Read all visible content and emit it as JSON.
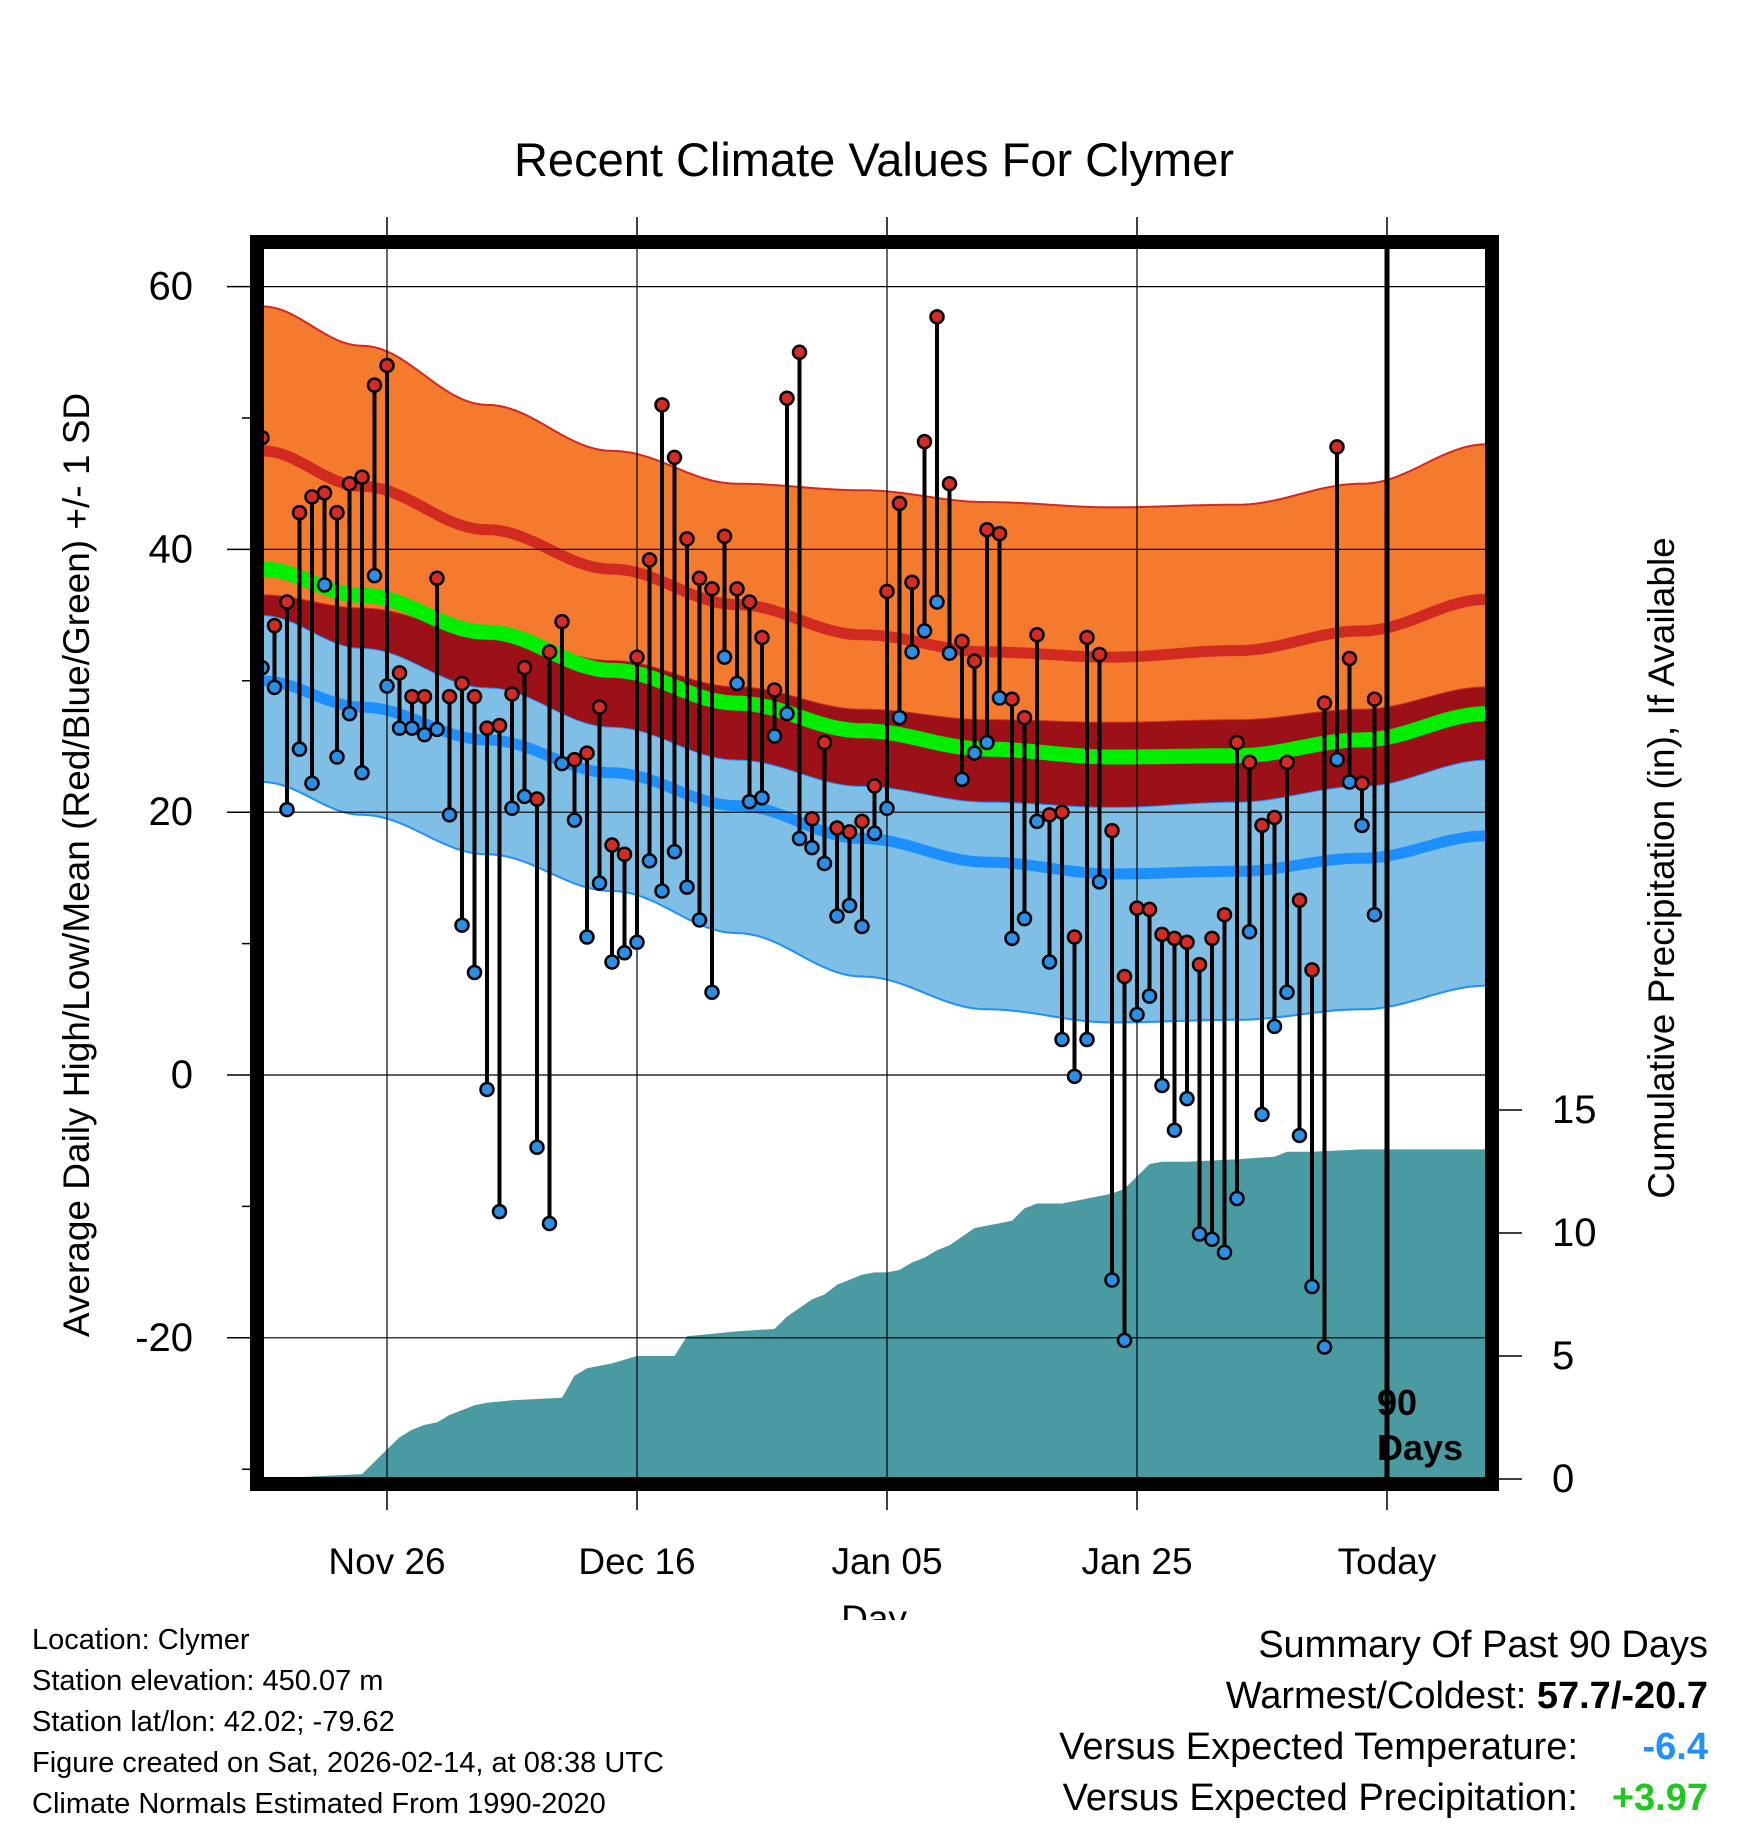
{
  "title": "Recent Climate Values For Clymer",
  "chart_data": {
    "type": "line",
    "title": "Recent Climate Values For Clymer",
    "xlabel": "Day",
    "ylabel_left": "Average Daily High/Low/Mean (Red/Blue/Green) +/- 1 SD",
    "ylabel_right": "Cumulative Precipitation (in), If Available",
    "x_range_days": [
      -88,
      10
    ],
    "x_ticks": [
      {
        "day": -78,
        "label": "Nov 26"
      },
      {
        "day": -58,
        "label": "Dec 16"
      },
      {
        "day": -38,
        "label": "Jan 05"
      },
      {
        "day": -18,
        "label": "Jan 25"
      },
      {
        "day": 2,
        "label": "Today"
      }
    ],
    "y_left_range": [
      -30,
      65
    ],
    "y_left_ticks": [
      -20,
      0,
      20,
      40,
      60
    ],
    "y_right_range": [
      0,
      30
    ],
    "y_right_ticks": [
      0,
      5,
      10,
      15
    ],
    "today_day": 2,
    "today_annotation": "90\nDays",
    "normals": {
      "days": [
        -88,
        -80,
        -70,
        -60,
        -50,
        -40,
        -30,
        -20,
        -10,
        0,
        10
      ],
      "high_mean": [
        47.5,
        44.8,
        41.5,
        38.5,
        35.8,
        33.5,
        32.2,
        31.8,
        32.3,
        33.8,
        36.2
      ],
      "high_upper": [
        58.5,
        55.5,
        51.0,
        47.5,
        45.0,
        44.5,
        43.6,
        43.2,
        43.4,
        45.0,
        48.0
      ],
      "high_lower": [
        36.5,
        35.5,
        33.5,
        31.5,
        29.5,
        27.8,
        27.0,
        26.8,
        27.0,
        27.8,
        29.5
      ],
      "mean": [
        38.5,
        36.5,
        33.7,
        30.8,
        28.3,
        26.2,
        24.8,
        24.2,
        24.3,
        25.5,
        27.5
      ],
      "low_mean": [
        30.0,
        28.0,
        25.5,
        23.0,
        20.5,
        18.0,
        16.2,
        15.3,
        15.5,
        16.5,
        18.2
      ],
      "low_upper": [
        35.0,
        32.5,
        29.5,
        26.5,
        24.0,
        22.0,
        20.8,
        20.4,
        20.8,
        22.0,
        24.0
      ],
      "low_lower": [
        22.3,
        19.8,
        16.8,
        14.0,
        10.8,
        7.5,
        5.0,
        4.0,
        4.2,
        5.0,
        6.8
      ]
    },
    "daily_obs": {
      "days": [
        -88,
        -87,
        -86,
        -85,
        -84,
        -83,
        -82,
        -81,
        -80,
        -79,
        -78,
        -77,
        -76,
        -75,
        -74,
        -73,
        -72,
        -71,
        -70,
        -69,
        -68,
        -67,
        -66,
        -65,
        -64,
        -63,
        -62,
        -61,
        -60,
        -59,
        -58,
        -57,
        -56,
        -55,
        -54,
        -53,
        -52,
        -51,
        -50,
        -49,
        -48,
        -47,
        -46,
        -45,
        -44,
        -43,
        -42,
        -41,
        -40,
        -39,
        -38,
        -37,
        -36,
        -35,
        -34,
        -33,
        -32,
        -31,
        -30,
        -29,
        -28,
        -27,
        -26,
        -25,
        -24,
        -23,
        -22,
        -21,
        -20,
        -19,
        -18,
        -17,
        -16,
        -15,
        -14,
        -13,
        -12,
        -11,
        -10,
        -9,
        -8,
        -7,
        -6,
        -5,
        -4,
        -3,
        -2,
        -1,
        0,
        1
      ],
      "high": [
        48.5,
        34.2,
        36.0,
        42.8,
        44.0,
        44.3,
        42.8,
        45.0,
        45.5,
        52.5,
        54.0,
        30.6,
        28.8,
        28.8,
        37.8,
        28.8,
        29.8,
        28.8,
        26.4,
        26.6,
        29.0,
        31.0,
        21.0,
        32.2,
        34.5,
        24.0,
        24.5,
        28.0,
        17.5,
        16.8,
        31.8,
        39.2,
        51.0,
        47.0,
        40.8,
        37.8,
        37.0,
        41.0,
        37.0,
        36.0,
        33.3,
        29.3,
        51.5,
        55.0,
        19.5,
        25.3,
        18.8,
        18.5,
        19.3,
        22.0,
        36.8,
        43.5,
        37.5,
        48.2,
        57.7,
        45.0,
        33.0,
        31.5,
        41.5,
        41.2,
        28.6,
        27.2,
        33.5,
        19.8,
        20.0,
        10.5,
        33.3,
        32.0,
        18.6,
        7.5,
        12.7,
        12.6,
        10.7,
        10.4,
        10.1,
        8.4,
        10.4,
        12.2,
        25.3,
        23.8,
        19.0,
        19.6,
        23.8,
        13.3,
        8.0,
        28.3,
        47.8,
        31.7,
        22.2,
        28.6
      ],
      "low": [
        31.0,
        29.5,
        20.2,
        24.8,
        22.2,
        37.3,
        24.2,
        27.5,
        23.0,
        38.0,
        29.6,
        26.4,
        26.4,
        25.9,
        26.3,
        19.8,
        11.4,
        7.8,
        -1.1,
        -10.4,
        20.3,
        21.2,
        -5.5,
        -11.3,
        23.7,
        19.4,
        10.5,
        14.6,
        8.6,
        9.3,
        10.1,
        16.3,
        14.0,
        17.0,
        14.3,
        11.8,
        6.3,
        31.8,
        29.8,
        20.8,
        21.1,
        25.8,
        27.5,
        18.0,
        17.3,
        16.1,
        12.1,
        12.9,
        11.3,
        18.4,
        20.3,
        27.2,
        32.2,
        33.8,
        36.0,
        32.1,
        22.5,
        24.5,
        25.3,
        28.7,
        10.4,
        11.9,
        19.3,
        8.6,
        2.7,
        -0.1,
        2.7,
        14.7,
        -15.6,
        -20.2,
        4.6,
        6.0,
        -0.8,
        -4.2,
        -1.8,
        -12.1,
        -12.5,
        -13.5,
        -9.4,
        10.9,
        -3.0,
        3.7,
        6.3,
        -4.6,
        -16.1,
        -20.7,
        24.0,
        22.3,
        19.0,
        12.2
      ]
    },
    "cumulative_precip": {
      "days": [
        -88,
        -84,
        -80,
        -79,
        -78,
        -77,
        -76,
        -75,
        -74,
        -73,
        -72,
        -71,
        -70,
        -68,
        -64,
        -63,
        -62,
        -60,
        -58,
        -55,
        -54,
        -50,
        -47,
        -46,
        -44,
        -43,
        -42,
        -41,
        -40,
        -39,
        -38,
        -37,
        -36,
        -35,
        -34,
        -33,
        -31,
        -30,
        -29,
        -28,
        -27,
        -26,
        -24,
        -21,
        -20,
        -19,
        -18,
        -17,
        -16,
        -14,
        -10,
        -7,
        -6,
        -4,
        0,
        10
      ],
      "values": [
        0.0,
        0.1,
        0.2,
        0.7,
        1.2,
        1.7,
        2.0,
        2.2,
        2.3,
        2.6,
        2.8,
        3.0,
        3.1,
        3.2,
        3.3,
        4.2,
        4.5,
        4.7,
        5.0,
        5.0,
        5.8,
        6.0,
        6.1,
        6.6,
        7.3,
        7.5,
        7.9,
        8.1,
        8.3,
        8.4,
        8.4,
        8.5,
        8.8,
        9.0,
        9.3,
        9.5,
        10.2,
        10.3,
        10.4,
        10.5,
        11.0,
        11.2,
        11.2,
        11.5,
        11.6,
        11.8,
        12.3,
        12.8,
        12.9,
        12.9,
        13.0,
        13.1,
        13.3,
        13.3,
        13.4,
        13.4
      ]
    }
  },
  "info": {
    "location": "Location: Clymer",
    "elevation": "Station elevation: 450.07 m",
    "latlon": "Station lat/lon: 42.02; -79.62",
    "created": "Figure created on Sat, 2026-02-14, at 08:38 UTC",
    "normals": "Climate Normals Estimated From 1990-2020"
  },
  "summary": {
    "heading": "Summary Of Past 90 Days",
    "warmest_coldest_label": "Warmest/Coldest: ",
    "warmest_coldest_value": "57.7/-20.7",
    "vs_temp_label": "Versus Expected Temperature:",
    "vs_temp_value": "-6.4",
    "vs_precip_label": "Versus Expected Precipitation:",
    "vs_precip_value": "+3.97"
  },
  "colors": {
    "high_band": "#f47a2e",
    "high_line": "#d12a20",
    "mean_band": "#9c1018",
    "mean_line": "#00ee00",
    "low_band": "#7fbfe6",
    "low_line": "#1e8fff",
    "precip": "#4a9aa2",
    "high_marker": "#d42b24",
    "low_marker": "#2a8fe6"
  }
}
